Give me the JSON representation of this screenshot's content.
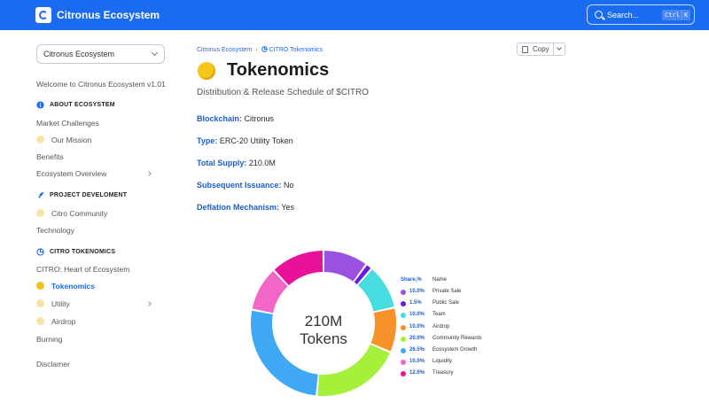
{
  "header": {
    "brand": "Citronus Ecosystem",
    "search_placeholder": "Search...",
    "shortcut_key1": "Ctrl",
    "shortcut_key2": "K"
  },
  "sidebar": {
    "space_selector": "Citronus Ecosystem",
    "welcome": "Welcome to Citronus Ecosystem v1.01",
    "sections": [
      {
        "title": "ABOUT ECOSYSTEM"
      },
      {
        "title": "PROJECT DEVELOMENT"
      },
      {
        "title": "CITRO TOKENOMICS"
      }
    ],
    "items": {
      "market_challenges": "Market Challenges",
      "our_mission": "Our Mission",
      "benefits": "Benefits",
      "ecosystem_overview": "Ecosystem Overview",
      "citro_community": "Citro Community",
      "technology": "Technology",
      "citro_heart": "CITRO: Heart of Ecosystem",
      "tokenomics": "Tokenomics",
      "utility": "Utility",
      "airdrop": "Airdrop",
      "burning": "Burning",
      "disclaimer": "Disclamer"
    }
  },
  "breadcrumb": {
    "root": "Citronus Ecosystem",
    "current": "CITRO Tokenomics"
  },
  "copy_button": {
    "label": "Copy"
  },
  "page": {
    "title": "Tokenomics",
    "subtitle": "Distribution & Release Schedule of $CITRO",
    "facts": [
      {
        "key": "Blockchain:",
        "value": "Citronus"
      },
      {
        "key": "Type:",
        "value": "ERC-20 Utility Token"
      },
      {
        "key": "Total Supply:",
        "value": "210.0M"
      },
      {
        "key": "Subsequent Issuance:",
        "value": "No"
      },
      {
        "key": "Deflation Mechanism:",
        "value": "Yes"
      }
    ]
  },
  "chart_data": {
    "type": "pie",
    "center_label_line1": "210M",
    "center_label_line2": "Tokens",
    "legend_header_share": "Share,%",
    "legend_header_name": "Name",
    "slices": [
      {
        "name": "Private Sale",
        "value": 10.0,
        "label": "10.0%",
        "color": "#9b51e0"
      },
      {
        "name": "Public Sale",
        "value": 1.5,
        "label": "1.5%",
        "color": "#6a1be0"
      },
      {
        "name": "Team",
        "value": 10.0,
        "label": "10.0%",
        "color": "#45dde0"
      },
      {
        "name": "Airdrop",
        "value": 10.0,
        "label": "10.0%",
        "color": "#f7922a"
      },
      {
        "name": "Community Rewards",
        "value": 20.0,
        "label": "20.0%",
        "color": "#a5f03a"
      },
      {
        "name": "Ecosystem Growth",
        "value": 26.5,
        "label": "26.5%",
        "color": "#3fa9f5"
      },
      {
        "name": "Liquidity",
        "value": 10.0,
        "label": "10.0%",
        "color": "#f266c8"
      },
      {
        "name": "Treasury",
        "value": 12.0,
        "label": "12.0%",
        "color": "#e8129a"
      }
    ]
  }
}
